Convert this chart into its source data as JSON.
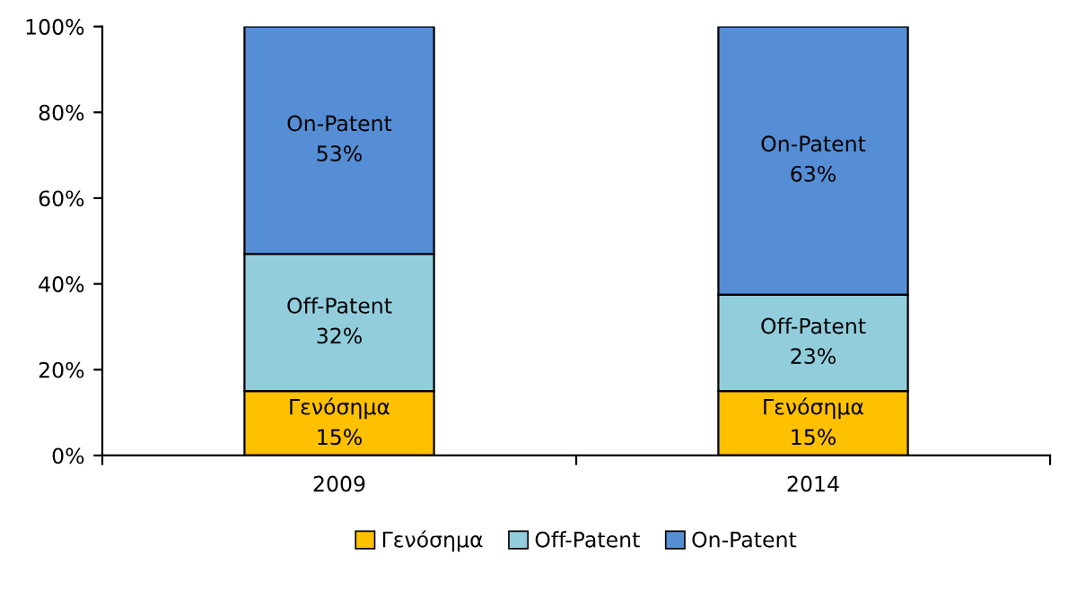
{
  "chart_data": {
    "type": "bar",
    "stacked": true,
    "categories": [
      "2009",
      "2014"
    ],
    "series": [
      {
        "name": "Γενόσημα",
        "color": "#ffc000",
        "values": [
          15,
          15
        ],
        "value_labels": [
          "15%",
          "15%"
        ]
      },
      {
        "name": "Off-Patent",
        "color": "#92cddc",
        "values": [
          32,
          22.5
        ],
        "value_labels": [
          "32%",
          "23%"
        ]
      },
      {
        "name": "On-Patent",
        "color": "#558ed5",
        "values": [
          53,
          62.5
        ],
        "value_labels": [
          "53%",
          "63%"
        ]
      }
    ],
    "ylim": [
      0,
      100
    ],
    "yticks": [
      {
        "value": 0,
        "label": "0%"
      },
      {
        "value": 20,
        "label": "20%"
      },
      {
        "value": 40,
        "label": "40%"
      },
      {
        "value": 60,
        "label": "60%"
      },
      {
        "value": 80,
        "label": "80%"
      },
      {
        "value": 100,
        "label": "100%"
      }
    ],
    "grid": false,
    "legend": "bottom"
  }
}
